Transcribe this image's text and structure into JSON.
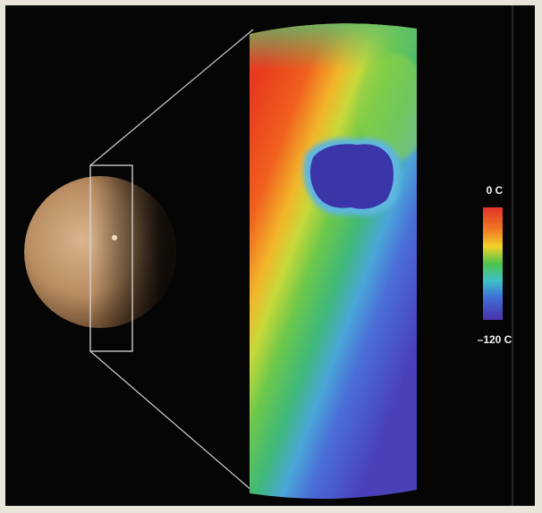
{
  "colorbar": {
    "top_label": "0 C",
    "bottom_label": "–120 C"
  }
}
